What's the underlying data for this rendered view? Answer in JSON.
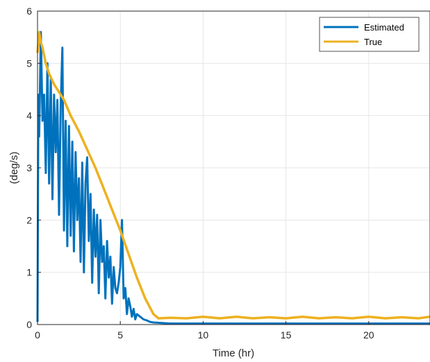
{
  "chart_data": {
    "type": "line",
    "title": "",
    "xlabel": "Time (hr)",
    "ylabel": "(deg/s)",
    "xlim": [
      0,
      23.7
    ],
    "ylim": [
      0,
      6
    ],
    "xticks": [
      0,
      5,
      10,
      15,
      20
    ],
    "yticks": [
      0,
      1,
      2,
      3,
      4,
      5,
      6
    ],
    "grid": true,
    "legend_position": "top-right",
    "series": [
      {
        "name": "Estimated",
        "color": "#0072BD",
        "x": [
          0,
          0.05,
          0.1,
          0.2,
          0.3,
          0.4,
          0.5,
          0.6,
          0.7,
          0.8,
          0.9,
          1.0,
          1.1,
          1.2,
          1.3,
          1.4,
          1.5,
          1.6,
          1.7,
          1.8,
          1.9,
          2.0,
          2.1,
          2.2,
          2.3,
          2.4,
          2.5,
          2.6,
          2.7,
          2.8,
          2.9,
          3.0,
          3.1,
          3.2,
          3.3,
          3.4,
          3.5,
          3.6,
          3.7,
          3.8,
          3.9,
          4.0,
          4.1,
          4.2,
          4.3,
          4.4,
          4.5,
          4.6,
          4.7,
          4.8,
          4.9,
          5.0,
          5.1,
          5.2,
          5.3,
          5.4,
          5.5,
          5.6,
          5.7,
          5.8,
          5.9,
          6.0,
          6.2,
          6.4,
          6.6,
          6.8,
          7.0,
          7.5,
          8.0,
          9.0,
          10.0,
          12.0,
          14.0,
          16.0,
          18.0,
          20.0,
          22.0,
          23.7
        ],
        "y": [
          0.05,
          4.4,
          3.6,
          5.6,
          3.9,
          4.4,
          2.9,
          5.0,
          2.7,
          4.7,
          2.4,
          4.4,
          3.3,
          4.3,
          2.1,
          4.2,
          5.3,
          1.8,
          3.9,
          1.5,
          3.8,
          1.7,
          3.5,
          1.4,
          3.3,
          2.0,
          2.8,
          1.2,
          3.1,
          1.0,
          2.7,
          3.2,
          1.6,
          2.5,
          0.8,
          2.2,
          1.3,
          2.1,
          0.6,
          2.0,
          1.2,
          1.5,
          0.5,
          1.6,
          0.9,
          1.3,
          0.4,
          1.1,
          0.7,
          0.6,
          0.8,
          1.1,
          2.0,
          0.5,
          0.7,
          0.2,
          0.5,
          0.35,
          0.15,
          0.3,
          0.1,
          0.2,
          0.15,
          0.1,
          0.08,
          0.05,
          0.04,
          0.03,
          0.02,
          0.02,
          0.02,
          0.02,
          0.02,
          0.02,
          0.02,
          0.02,
          0.02,
          0.02
        ]
      },
      {
        "name": "True",
        "color": "#EDB120",
        "x": [
          0,
          0.1,
          0.2,
          0.3,
          0.5,
          0.7,
          1.0,
          1.3,
          1.6,
          2.0,
          2.5,
          3.0,
          3.5,
          4.0,
          4.5,
          5.0,
          5.5,
          6.0,
          6.5,
          7.0,
          7.3,
          8.0,
          9.0,
          10.0,
          11.0,
          12.0,
          13.0,
          14.0,
          15.0,
          16.0,
          17.0,
          18.0,
          19.0,
          20.0,
          21.0,
          22.0,
          23.0,
          23.7
        ],
        "y": [
          5.2,
          5.6,
          5.4,
          5.3,
          5.0,
          4.8,
          4.6,
          4.45,
          4.3,
          4.0,
          3.7,
          3.35,
          3.0,
          2.6,
          2.2,
          1.8,
          1.35,
          0.9,
          0.5,
          0.2,
          0.12,
          0.13,
          0.12,
          0.15,
          0.12,
          0.15,
          0.12,
          0.14,
          0.12,
          0.15,
          0.12,
          0.14,
          0.12,
          0.15,
          0.12,
          0.14,
          0.12,
          0.15
        ]
      }
    ]
  }
}
